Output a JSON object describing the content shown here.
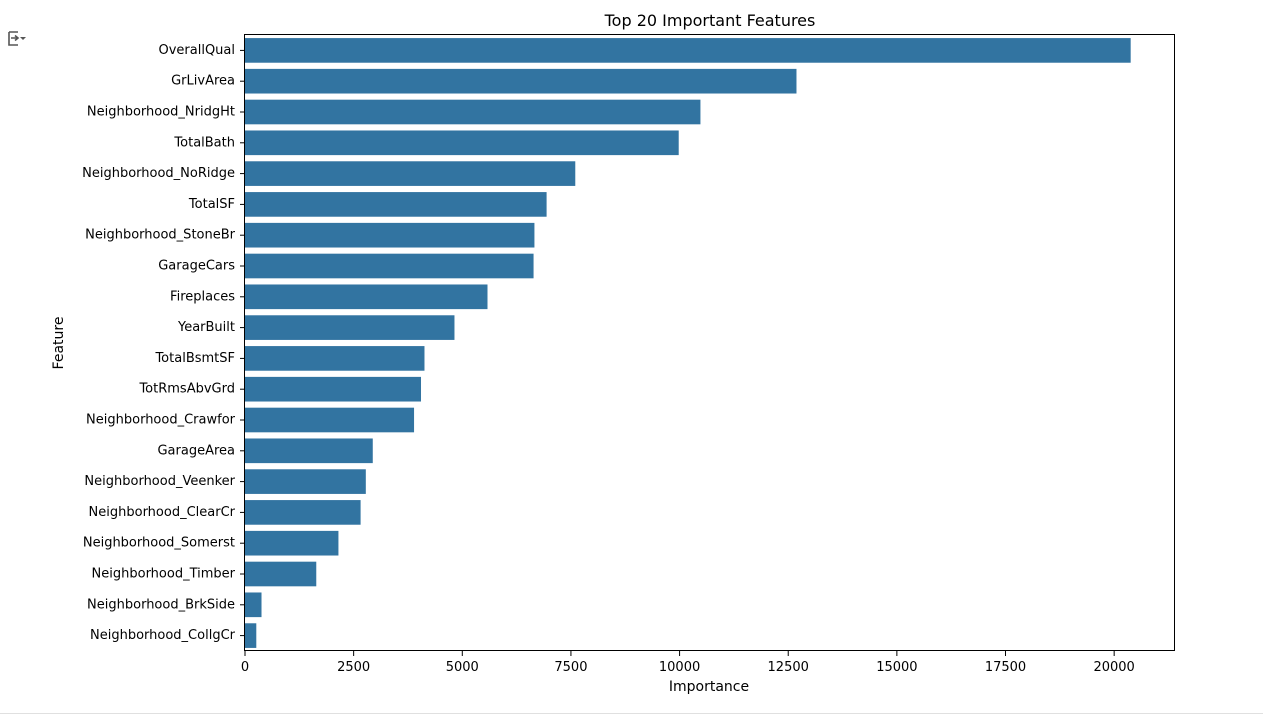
{
  "output_icon": "output-scroll-icon",
  "chart_data": {
    "type": "bar",
    "orientation": "horizontal",
    "title": "Top 20 Important Features",
    "xlabel": "Importance",
    "ylabel": "Feature",
    "xlim": [
      0,
      21400
    ],
    "xticks": [
      0,
      2500,
      5000,
      7500,
      10000,
      12500,
      15000,
      17500,
      20000
    ],
    "grid": false,
    "bar_color": "#3274a1",
    "categories": [
      "OverallQual",
      "GrLivArea",
      "Neighborhood_NridgHt",
      "TotalBath",
      "Neighborhood_NoRidge",
      "TotalSF",
      "Neighborhood_StoneBr",
      "GarageCars",
      "Fireplaces",
      "YearBuilt",
      "TotalBsmtSF",
      "TotRmsAbvGrd",
      "Neighborhood_Crawfor",
      "GarageArea",
      "Neighborhood_Veenker",
      "Neighborhood_ClearCr",
      "Neighborhood_Somerst",
      "Neighborhood_Timber",
      "Neighborhood_BrkSide",
      "Neighborhood_CollgCr"
    ],
    "values": [
      20380,
      12690,
      10480,
      9980,
      7600,
      6940,
      6660,
      6640,
      5580,
      4820,
      4130,
      4050,
      3890,
      2940,
      2780,
      2660,
      2150,
      1640,
      380,
      260
    ]
  }
}
